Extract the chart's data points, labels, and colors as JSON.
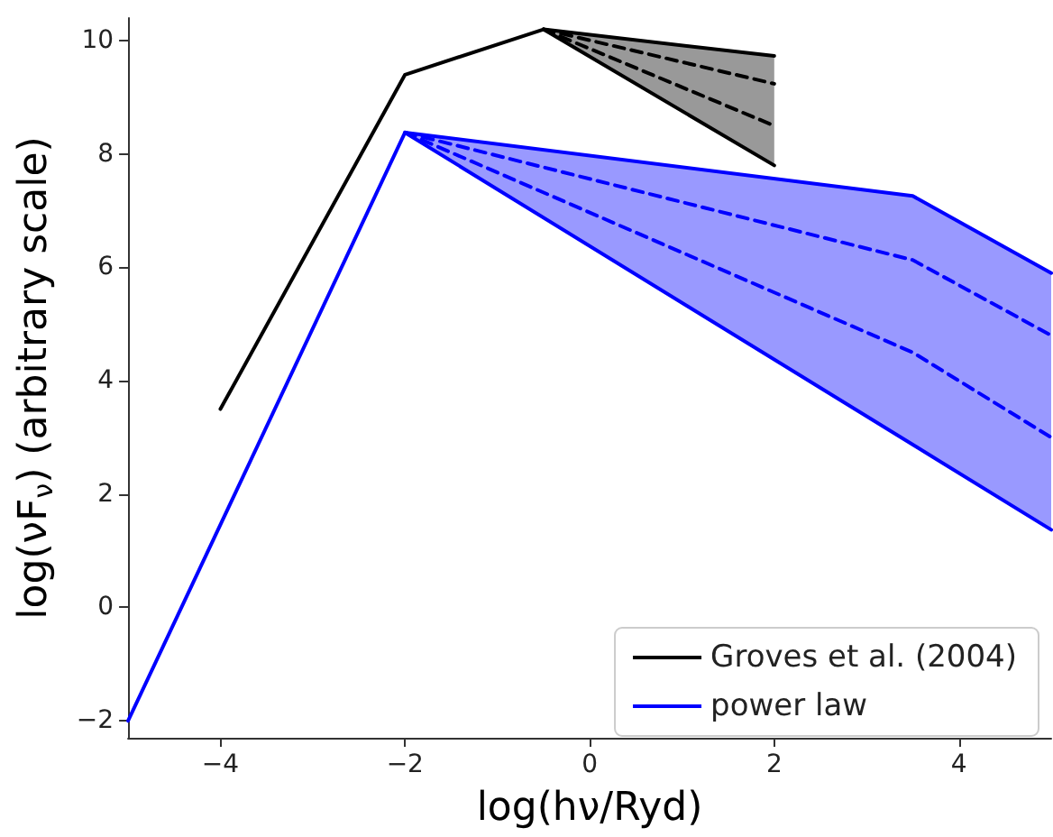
{
  "chart_data": {
    "type": "line",
    "xlabel": "log(hν/Ryd)",
    "ylabel": "log(νF$_{ν}$) (arbitrary scale)",
    "xlim": [
      -5,
      5
    ],
    "ylim": [
      -2.3,
      10.4
    ],
    "xticks": [
      -4,
      -2,
      0,
      2,
      4
    ],
    "yticks": [
      -2,
      0,
      2,
      4,
      6,
      8,
      10
    ],
    "grid": false,
    "legend": "bottom right",
    "marker": "none",
    "line_style": "solid",
    "series": [
      {
        "name": "Groves et al. (2004)",
        "color": "#000000",
        "x": [
          -4,
          -2,
          -0.5,
          2
        ],
        "values": [
          3.5,
          9.4,
          10.2,
          9.73
        ]
      },
      {
        "color": "#000000",
        "x": [
          -0.5,
          2
        ],
        "values": [
          10.2,
          7.8
        ]
      },
      {
        "color": "#000000",
        "line_style": "dashed",
        "x": [
          -0.5,
          2
        ],
        "values": [
          10.2,
          9.24
        ],
        "lower": [
          10.2,
          7.8
        ],
        "upper": [
          10.2,
          9.73
        ]
      },
      {
        "color": "#000000",
        "line_style": "dashed",
        "x": [
          -0.5,
          2
        ],
        "values": [
          10.2,
          8.5
        ]
      },
      {
        "name": "power law",
        "color": "#0000ff",
        "x": [
          -5,
          -2,
          3.5,
          5
        ],
        "values": [
          -2,
          8.38,
          7.26,
          5.9
        ]
      },
      {
        "color": "#0000ff",
        "x": [
          -2,
          5
        ],
        "values": [
          8.38,
          1.37
        ]
      },
      {
        "color": "#0000ff",
        "line_style": "dashed",
        "x": [
          -2,
          3.5,
          5
        ],
        "values": [
          8.38,
          6.13,
          4.8
        ],
        "lower": [
          8.38,
          2.87,
          1.37
        ],
        "upper": [
          8.38,
          7.26,
          5.9
        ]
      },
      {
        "color": "#0000ff",
        "line_style": "dashed",
        "x": [
          -2,
          3.5,
          5
        ],
        "values": [
          8.38,
          4.5,
          3.0
        ]
      }
    ]
  }
}
